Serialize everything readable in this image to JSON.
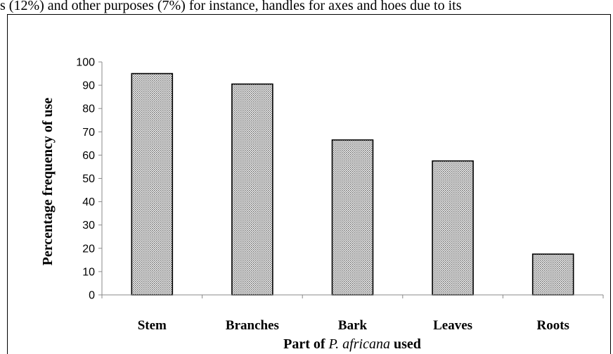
{
  "header_text": "s (12%) and other purposes (7%) for instance, handles for axes and hoes due to its",
  "chart_data": {
    "type": "bar",
    "categories": [
      "Stem",
      "Branches",
      "Bark",
      "Leaves",
      "Roots"
    ],
    "values": [
      95,
      90.5,
      66.5,
      57.5,
      17.5
    ],
    "title": "",
    "ylabel": "Percentage frequency of use",
    "xlabel_parts": [
      "Part of ",
      "P. africana",
      " used"
    ],
    "ylim": [
      0,
      100
    ],
    "yticks": [
      "0",
      "10",
      "20",
      "30",
      "40",
      "50",
      "60",
      "70",
      "80",
      "90",
      "100"
    ],
    "grid": false,
    "bar_fill": "dotted-gray",
    "bar_edge_color": "#000000"
  }
}
